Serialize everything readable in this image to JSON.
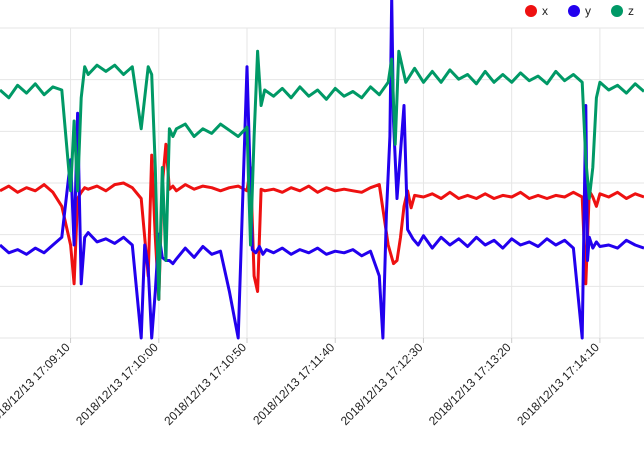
{
  "chart_data": {
    "type": "line",
    "legend_position": "top-right",
    "categories": [
      "2018/12/13 17:09:10",
      "2018/12/13 17:10:00",
      "2018/12/13 17:10:50",
      "2018/12/13 17:11:40",
      "2018/12/13 17:12:30",
      "2018/12/13 17:13:20",
      "2018/12/13 17:14:10"
    ],
    "x_range_seconds": [
      -40,
      325
    ],
    "ylim": [
      -10,
      10
    ],
    "grid": true,
    "series": [
      {
        "name": "x",
        "color": "#ee1111",
        "x": [
          -40,
          -35,
          -30,
          -25,
          -20,
          -15,
          -10,
          -5,
          0,
          2,
          4,
          6,
          8,
          10,
          15,
          20,
          25,
          30,
          35,
          40,
          44,
          46,
          48,
          50,
          52,
          54,
          56,
          58,
          60,
          65,
          70,
          75,
          80,
          85,
          90,
          95,
          100,
          102,
          104,
          106,
          108,
          110,
          115,
          120,
          125,
          130,
          135,
          140,
          145,
          150,
          155,
          160,
          165,
          170,
          175,
          180,
          183,
          185,
          187,
          189,
          191,
          193,
          195,
          200,
          205,
          210,
          215,
          220,
          225,
          230,
          235,
          240,
          245,
          250,
          255,
          260,
          265,
          270,
          275,
          280,
          285,
          290,
          292,
          294,
          296,
          298,
          300,
          305,
          310,
          315,
          320,
          325
        ],
        "values": [
          -0.5,
          -0.2,
          -0.6,
          -0.3,
          -0.5,
          -0.1,
          -0.6,
          -1.5,
          -4.0,
          -6.5,
          -1.0,
          -0.6,
          -0.3,
          -0.4,
          -0.2,
          -0.5,
          -0.1,
          0.0,
          -0.3,
          -1.0,
          -6.0,
          1.8,
          -3.5,
          -7.5,
          -0.1,
          2.5,
          -0.4,
          -0.2,
          -0.5,
          -0.1,
          -0.4,
          -0.2,
          -0.3,
          -0.5,
          -0.3,
          -0.2,
          -0.5,
          1.0,
          -6.0,
          -7.0,
          -0.4,
          -0.5,
          -0.4,
          -0.6,
          -0.3,
          -0.5,
          -0.2,
          -0.6,
          -0.3,
          -0.5,
          -0.4,
          -0.5,
          -0.6,
          -0.3,
          -0.1,
          -4.0,
          -5.2,
          -5.0,
          -3.5,
          -1.5,
          -0.5,
          -1.6,
          -0.8,
          -0.9,
          -0.7,
          -1.0,
          -0.6,
          -1.0,
          -0.8,
          -1.0,
          -0.7,
          -1.0,
          -0.8,
          -0.9,
          -0.6,
          -1.0,
          -0.8,
          -1.0,
          -0.8,
          -0.9,
          -0.6,
          -0.9,
          -6.5,
          -0.5,
          -0.9,
          -1.5,
          -0.7,
          -0.9,
          -0.6,
          -1.0,
          -0.7,
          -0.9
        ]
      },
      {
        "name": "y",
        "color": "#2200ee",
        "x": [
          -40,
          -35,
          -30,
          -25,
          -20,
          -15,
          -10,
          -5,
          0,
          2,
          4,
          6,
          8,
          10,
          15,
          20,
          25,
          30,
          35,
          40,
          42,
          44,
          46,
          48,
          50,
          52,
          54,
          56,
          58,
          60,
          65,
          70,
          75,
          80,
          85,
          90,
          95,
          100,
          103,
          105,
          107,
          109,
          111,
          115,
          120,
          125,
          130,
          135,
          140,
          145,
          150,
          155,
          160,
          165,
          170,
          175,
          177,
          179,
          181,
          182,
          183,
          185,
          187,
          189,
          191,
          194,
          197,
          200,
          205,
          210,
          215,
          220,
          225,
          230,
          235,
          240,
          245,
          250,
          255,
          260,
          265,
          270,
          275,
          280,
          285,
          290,
          292,
          293,
          294,
          296,
          298,
          300,
          305,
          310,
          315,
          320,
          325
        ],
        "values": [
          -4.0,
          -4.5,
          -4.3,
          -4.6,
          -4.2,
          -4.5,
          -4.0,
          -3.5,
          1.5,
          -4.0,
          4.5,
          -6.5,
          -3.5,
          -3.2,
          -3.8,
          -3.6,
          -3.9,
          -3.5,
          -4.0,
          -10.0,
          -4.0,
          -5.5,
          -10.0,
          -7.0,
          -3.3,
          -4.8,
          -5.0,
          -5.0,
          -5.2,
          -4.9,
          -4.2,
          -4.8,
          -4.1,
          -4.6,
          -4.4,
          -7.0,
          -10.0,
          7.5,
          -4.3,
          -4.5,
          -4.1,
          -4.6,
          -4.3,
          -4.5,
          -4.2,
          -4.6,
          -4.3,
          -4.5,
          -4.2,
          -4.6,
          -4.4,
          -4.5,
          -4.3,
          -4.7,
          -4.4,
          -6.0,
          -10.0,
          -2.0,
          3.0,
          12.0,
          4.0,
          -1.0,
          2.0,
          5.0,
          -3.0,
          -3.6,
          -4.0,
          -3.4,
          -4.2,
          -3.5,
          -4.0,
          -3.6,
          -4.1,
          -3.5,
          -4.0,
          -3.7,
          -4.2,
          -3.6,
          -4.0,
          -3.8,
          -4.1,
          -3.6,
          -4.0,
          -3.7,
          -4.2,
          -10.0,
          5.0,
          -5.0,
          -3.5,
          -4.2,
          -3.8,
          -4.1,
          -4.0,
          -4.2,
          -3.7,
          -4.0,
          -4.2
        ]
      },
      {
        "name": "z",
        "color": "#009966",
        "x": [
          -40,
          -35,
          -30,
          -25,
          -20,
          -15,
          -10,
          -5,
          0,
          2,
          4,
          6,
          8,
          10,
          15,
          20,
          25,
          30,
          35,
          40,
          44,
          46,
          48,
          50,
          52,
          54,
          56,
          58,
          60,
          65,
          70,
          75,
          80,
          85,
          90,
          95,
          100,
          102,
          104,
          106,
          108,
          110,
          115,
          120,
          125,
          130,
          135,
          140,
          145,
          150,
          155,
          160,
          165,
          170,
          175,
          180,
          182,
          184,
          186,
          190,
          195,
          200,
          205,
          210,
          215,
          220,
          225,
          230,
          235,
          240,
          245,
          250,
          255,
          260,
          265,
          270,
          275,
          280,
          285,
          290,
          292,
          294,
          296,
          298,
          300,
          305,
          310,
          315,
          320,
          325
        ],
        "values": [
          6.0,
          5.5,
          6.3,
          5.8,
          6.4,
          5.7,
          6.2,
          6.0,
          -0.5,
          4.0,
          -0.5,
          5.5,
          7.5,
          7.0,
          7.6,
          7.2,
          7.6,
          7.0,
          7.5,
          3.5,
          7.5,
          7.0,
          1.0,
          -7.5,
          1.0,
          -5.0,
          3.5,
          3.0,
          3.5,
          3.8,
          3.0,
          3.5,
          3.2,
          3.8,
          3.4,
          3.0,
          3.6,
          -4.0,
          3.0,
          8.5,
          5.0,
          6.0,
          5.6,
          6.1,
          5.5,
          6.2,
          5.6,
          6.0,
          5.4,
          6.1,
          5.6,
          5.9,
          5.5,
          6.2,
          5.7,
          6.5,
          8.0,
          2.5,
          8.5,
          6.5,
          7.4,
          6.5,
          7.2,
          6.5,
          7.3,
          6.7,
          7.0,
          6.4,
          7.2,
          6.5,
          7.0,
          6.5,
          7.1,
          6.6,
          6.9,
          6.4,
          7.2,
          6.6,
          7.0,
          6.5,
          1.5,
          -1.0,
          1.0,
          5.5,
          6.5,
          6.0,
          6.3,
          5.8,
          6.4,
          5.9
        ]
      }
    ]
  }
}
